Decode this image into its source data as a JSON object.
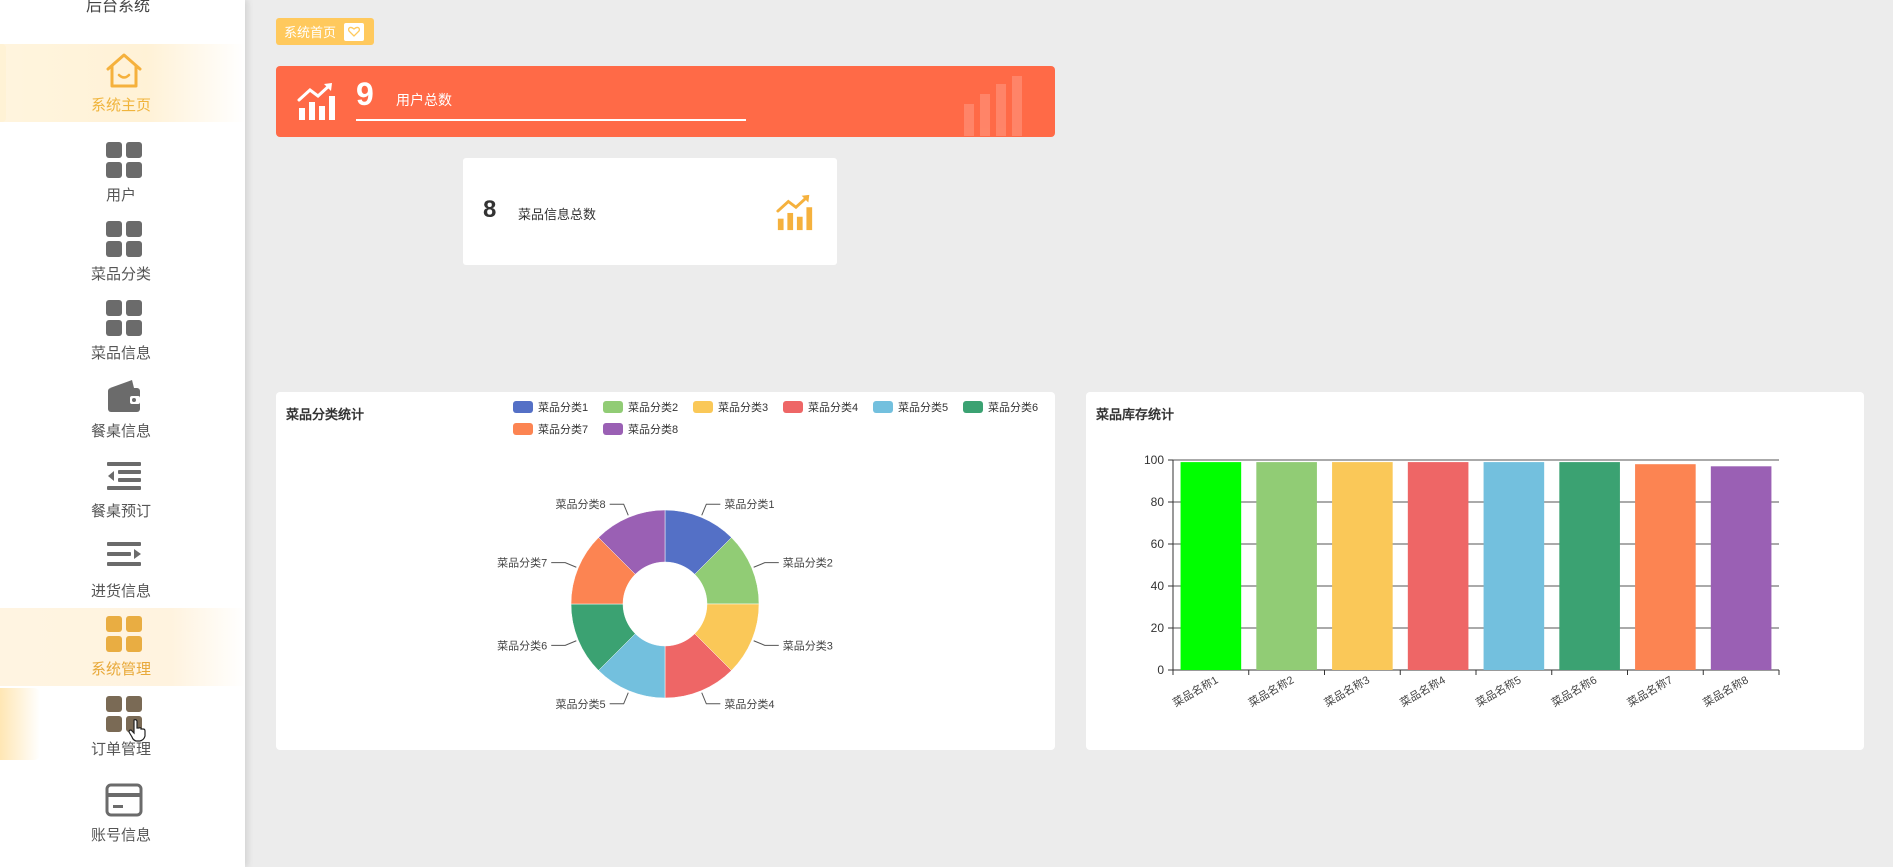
{
  "sidebar": {
    "top_cut_text": "后台系统",
    "items": [
      {
        "label": "系统主页",
        "icon": "home-icon",
        "state": "active"
      },
      {
        "label": "用户",
        "icon": "grid-icon",
        "state": "normal"
      },
      {
        "label": "菜品分类",
        "icon": "grid-icon",
        "state": "normal"
      },
      {
        "label": "菜品信息",
        "icon": "grid-icon",
        "state": "normal"
      },
      {
        "label": "餐桌信息",
        "icon": "wallet-icon",
        "state": "normal"
      },
      {
        "label": "餐桌预订",
        "icon": "list-indent-icon",
        "state": "normal"
      },
      {
        "label": "进货信息",
        "icon": "list-arrow-icon",
        "state": "normal"
      },
      {
        "label": "系统管理",
        "icon": "grid-icon",
        "state": "hover"
      },
      {
        "label": "订单管理",
        "icon": "grid-icon",
        "state": "normal"
      },
      {
        "label": "账号信息",
        "icon": "card-icon",
        "state": "normal"
      }
    ]
  },
  "breadcrumb": {
    "label": "系统首页",
    "icon": "heart-icon"
  },
  "stats": {
    "users": {
      "value": "9",
      "label": "用户总数"
    },
    "dishes": {
      "value": "8",
      "label": "菜品信息总数"
    }
  },
  "colors": {
    "accent": "#ffc95d",
    "user_card": "#ff6a47",
    "series": [
      "#5470c6",
      "#91cc75",
      "#fac858",
      "#ee6666",
      "#73c0de",
      "#3ba272",
      "#fc8452",
      "#9a60b4"
    ],
    "bar_first": "#00ff00"
  },
  "pie_chart": {
    "title": "菜品分类统计",
    "chart_data": {
      "type": "pie",
      "title": "菜品分类统计",
      "labels": [
        "菜品分类1",
        "菜品分类2",
        "菜品分类3",
        "菜品分类4",
        "菜品分类5",
        "菜品分类6",
        "菜品分类7",
        "菜品分类8"
      ],
      "values": [
        1,
        1,
        1,
        1,
        1,
        1,
        1,
        1
      ],
      "legend_position": "top-right",
      "donut": true
    }
  },
  "bar_chart": {
    "title": "菜品库存统计",
    "chart_data": {
      "type": "bar",
      "title": "菜品库存统计",
      "categories": [
        "菜品名称1",
        "菜品名称2",
        "菜品名称3",
        "菜品名称4",
        "菜品名称5",
        "菜品名称6",
        "菜品名称7",
        "菜品名称8"
      ],
      "values": [
        99,
        99,
        99,
        99,
        99,
        99,
        98,
        97
      ],
      "yticks": [
        "0",
        "20",
        "40",
        "60",
        "80",
        "100"
      ],
      "ylim": [
        0,
        100
      ],
      "grid": true
    }
  }
}
